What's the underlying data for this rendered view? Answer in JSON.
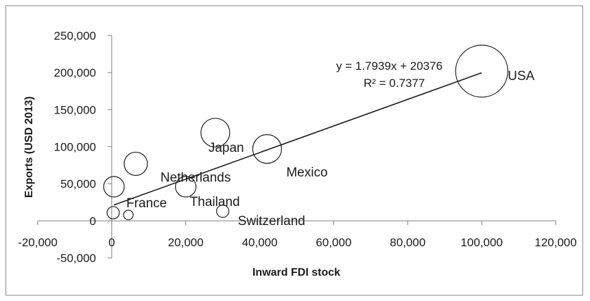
{
  "chart_data": {
    "type": "bubble",
    "title": "",
    "xlabel": "Inward FDI stock",
    "ylabel": "Exports (USD 2013)",
    "xlim": [
      -20000,
      120000
    ],
    "ylim": [
      -50000,
      250000
    ],
    "x_ticks": [
      -20000,
      0,
      20000,
      40000,
      60000,
      80000,
      100000,
      120000
    ],
    "x_tick_labels": [
      "-20,000",
      "0",
      "20,000",
      "40,000",
      "60,000",
      "80,000",
      "100,000",
      "120,000"
    ],
    "y_ticks": [
      -50000,
      0,
      50000,
      100000,
      150000,
      200000,
      250000
    ],
    "y_tick_labels": [
      "-50,000",
      "0",
      "50,000",
      "100,000",
      "150,000",
      "200,000",
      "250,000"
    ],
    "grid": false,
    "legend": "none",
    "points": [
      {
        "label": "USA",
        "x": 100000,
        "y": 202000,
        "r": 38
      },
      {
        "label": "Japan",
        "x": 28000,
        "y": 119000,
        "r": 21
      },
      {
        "label": "Mexico",
        "x": 42000,
        "y": 97000,
        "r": 21
      },
      {
        "label": "Netherlands",
        "x": 6500,
        "y": 77000,
        "r": 17
      },
      {
        "label": "France",
        "x": 600,
        "y": 46000,
        "r": 15
      },
      {
        "label": "Thailand",
        "x": 20000,
        "y": 46000,
        "r": 15
      },
      {
        "label": "",
        "x": 400,
        "y": 11000,
        "r": 9
      },
      {
        "label": "",
        "x": 4500,
        "y": 8000,
        "r": 7
      },
      {
        "label": "Switzerland",
        "x": 30000,
        "y": 13000,
        "r": 9
      }
    ],
    "trendline": {
      "type": "linear",
      "x_from": 600,
      "x_to": 100000,
      "equation": "y = 1.7939x + 20376",
      "r2": "R² = 0.7377"
    },
    "colors": {
      "marker_stroke": "#1a1a1a",
      "marker_fill": "none",
      "axis": "#7f7f7f"
    }
  }
}
